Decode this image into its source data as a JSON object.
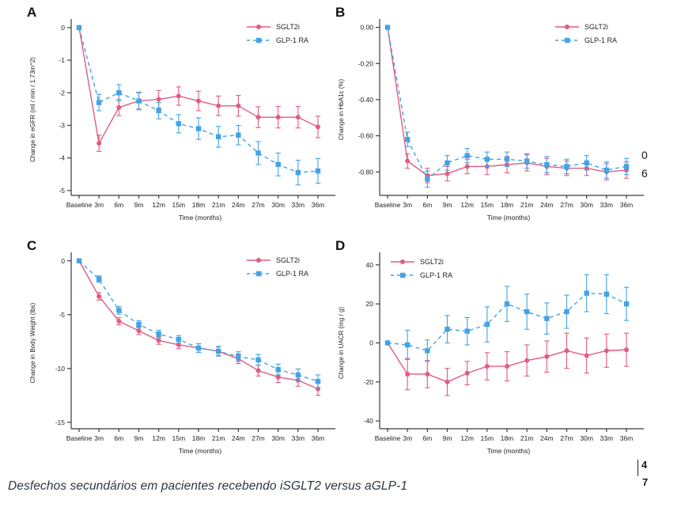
{
  "page": {
    "caption": "Desfechos secundários em pacientes recebendo iSGLT2 versus aGLP-1",
    "artifacts": {
      "right_column": [
        "0",
        "6"
      ],
      "page_numbers": [
        "4",
        "7"
      ]
    }
  },
  "colors": {
    "sglt2i": "#e25b80",
    "glp1": "#42a3e5",
    "axis": "#3a3a3a",
    "text": "#222222"
  },
  "chart_data": [
    {
      "panel": "A",
      "type": "line",
      "title": "",
      "xlabel": "Time (months)",
      "ylabel": "Change in eGFR (ml / min / 1.73m^2)",
      "categories": [
        "Baseline",
        "3m",
        "6m",
        "9m",
        "12m",
        "15m",
        "18m",
        "21m",
        "24m",
        "27m",
        "30m",
        "33m",
        "36m"
      ],
      "ylim": [
        -5.15,
        0.12
      ],
      "yticks": [
        0,
        -1,
        -2,
        -3,
        -4,
        -5
      ],
      "ytick_labels": [
        "0",
        "-1",
        "-2",
        "-3",
        "-4",
        "-5"
      ],
      "grid": false,
      "legend_pos": "top-right",
      "series": [
        {
          "name": "SGLT2i",
          "color": "#e25b80",
          "dash": false,
          "marker": "circle",
          "values": [
            0,
            -3.55,
            -2.45,
            -2.25,
            -2.2,
            -2.1,
            -2.25,
            -2.4,
            -2.4,
            -2.75,
            -2.75,
            -2.75,
            -3.05
          ],
          "errors": [
            0,
            0.25,
            0.25,
            0.25,
            0.27,
            0.28,
            0.3,
            0.3,
            0.32,
            0.32,
            0.33,
            0.33,
            0.33
          ]
        },
        {
          "name": "GLP-1 RA",
          "color": "#42a3e5",
          "dash": true,
          "marker": "square",
          "values": [
            0,
            -2.3,
            -2.0,
            -2.25,
            -2.55,
            -2.95,
            -3.1,
            -3.35,
            -3.3,
            -3.85,
            -4.2,
            -4.45,
            -4.4
          ],
          "errors": [
            0,
            0.25,
            0.25,
            0.27,
            0.25,
            0.28,
            0.33,
            0.32,
            0.3,
            0.35,
            0.35,
            0.38,
            0.38
          ]
        }
      ]
    },
    {
      "panel": "B",
      "type": "line",
      "title": "",
      "xlabel": "Time (months)",
      "ylabel": "Change in HbA1c (%)",
      "categories": [
        "Baseline",
        "3m",
        "6m",
        "9m",
        "12m",
        "15m",
        "18m",
        "21m",
        "24m",
        "27m",
        "30m",
        "33m",
        "36m"
      ],
      "ylim": [
        -0.93,
        0.02
      ],
      "yticks": [
        0,
        -0.2,
        -0.4,
        -0.6,
        -0.8
      ],
      "ytick_labels": [
        "0.00",
        "-0.20",
        "-0.40",
        "-0.60",
        "-0.80"
      ],
      "grid": false,
      "legend_pos": "top-right",
      "series": [
        {
          "name": "SGLT2i",
          "color": "#e25b80",
          "dash": false,
          "marker": "circle",
          "values": [
            0,
            -0.74,
            -0.82,
            -0.81,
            -0.77,
            -0.77,
            -0.76,
            -0.75,
            -0.77,
            -0.78,
            -0.78,
            -0.8,
            -0.79
          ],
          "errors": [
            0,
            0.04,
            0.04,
            0.04,
            0.04,
            0.045,
            0.045,
            0.045,
            0.045,
            0.04,
            0.04,
            0.045,
            0.045
          ]
        },
        {
          "name": "GLP-1 RA",
          "color": "#42a3e5",
          "dash": true,
          "marker": "square",
          "values": [
            0,
            -0.62,
            -0.84,
            -0.75,
            -0.71,
            -0.73,
            -0.73,
            -0.74,
            -0.76,
            -0.77,
            -0.75,
            -0.79,
            -0.77
          ],
          "errors": [
            0,
            0.04,
            0.045,
            0.04,
            0.04,
            0.04,
            0.04,
            0.04,
            0.045,
            0.04,
            0.04,
            0.045,
            0.045
          ]
        }
      ]
    },
    {
      "panel": "C",
      "type": "line",
      "title": "",
      "xlabel": "Time (months)",
      "ylabel": "Change in Body Weight (lbs)",
      "categories": [
        "Baseline",
        "3m",
        "6m",
        "9m",
        "12m",
        "15m",
        "18m",
        "21m",
        "24m",
        "27m",
        "30m",
        "33m",
        "36m"
      ],
      "ylim": [
        -15.6,
        0.35
      ],
      "yticks": [
        0,
        -5,
        -10,
        -15
      ],
      "ytick_labels": [
        "0",
        "-5",
        "-10",
        "-15"
      ],
      "grid": false,
      "legend_pos": "top-right",
      "series": [
        {
          "name": "SGLT2i",
          "color": "#e25b80",
          "dash": false,
          "marker": "circle",
          "values": [
            0,
            -3.3,
            -5.6,
            -6.5,
            -7.4,
            -7.8,
            -8.1,
            -8.4,
            -9.1,
            -10.2,
            -10.8,
            -11.1,
            -11.9
          ],
          "errors": [
            0,
            0.35,
            0.35,
            0.35,
            0.35,
            0.35,
            0.4,
            0.4,
            0.45,
            0.5,
            0.5,
            0.55,
            0.6
          ]
        },
        {
          "name": "GLP-1 RA",
          "color": "#42a3e5",
          "dash": true,
          "marker": "square",
          "values": [
            0,
            -1.7,
            -4.6,
            -5.9,
            -6.8,
            -7.3,
            -8.1,
            -8.4,
            -8.9,
            -9.2,
            -10.1,
            -10.6,
            -11.2
          ],
          "errors": [
            0,
            0.3,
            0.35,
            0.35,
            0.35,
            0.35,
            0.4,
            0.45,
            0.45,
            0.5,
            0.5,
            0.55,
            0.6
          ]
        }
      ]
    },
    {
      "panel": "D",
      "type": "line",
      "title": "",
      "xlabel": "Time (months)",
      "ylabel": "Change in UACR (mg / g)",
      "categories": [
        "Baseline",
        "3m",
        "6m",
        "9m",
        "12m",
        "15m",
        "18m",
        "21m",
        "24m",
        "27m",
        "30m",
        "33m",
        "36m"
      ],
      "ylim": [
        -44,
        44
      ],
      "yticks": [
        40,
        20,
        0,
        -20,
        -40
      ],
      "ytick_labels": [
        "40",
        "20",
        "0",
        "-20",
        "-40"
      ],
      "grid": false,
      "legend_pos": "top-left",
      "series": [
        {
          "name": "SGLT2i",
          "color": "#e25b80",
          "dash": false,
          "marker": "circle",
          "values": [
            0,
            -16,
            -16,
            -20,
            -15.5,
            -12,
            -12,
            -9,
            -7,
            -4,
            -6.5,
            -4,
            -3.5
          ],
          "errors": [
            0,
            8,
            7,
            7,
            6,
            7,
            7.5,
            8,
            8,
            9,
            9,
            8.5,
            8.5
          ]
        },
        {
          "name": "GLP-1 RA",
          "color": "#42a3e5",
          "dash": true,
          "marker": "square",
          "values": [
            0,
            -1,
            -4,
            7,
            6,
            9.5,
            20,
            16,
            12.5,
            16,
            25.5,
            25,
            20
          ],
          "errors": [
            0,
            7.5,
            5.5,
            7,
            7,
            9,
            9,
            9,
            8,
            8.5,
            9.5,
            10,
            8.5
          ]
        }
      ]
    }
  ]
}
